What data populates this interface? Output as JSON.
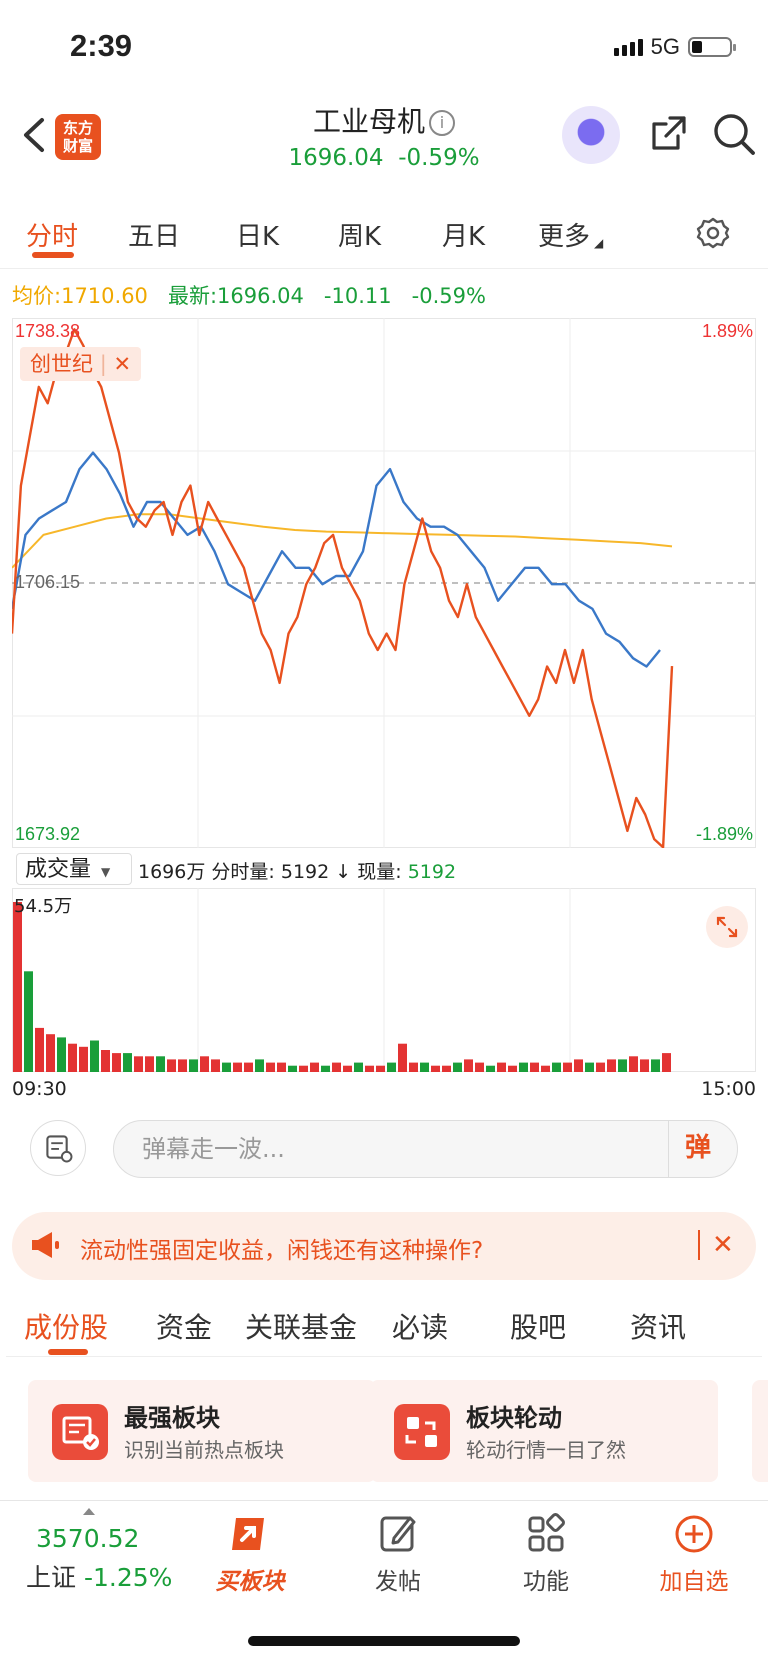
{
  "status": {
    "time": "2:39",
    "network": "5G"
  },
  "header": {
    "logo_line1": "东方",
    "logo_line2": "财富",
    "title": "工业母机",
    "info_glyph": "i",
    "price": "1696.04",
    "change_pct": "-0.59%"
  },
  "period_tabs": [
    "分时",
    "五日",
    "日K",
    "周K",
    "月K",
    "更多"
  ],
  "price_line": {
    "avg_label": "均价:",
    "avg_value": "1710.60",
    "latest_label": "最新:",
    "latest_value": "1696.04",
    "change": "-10.11",
    "change_pct": "-0.59%"
  },
  "chart_axis": {
    "top_price": "1738.38",
    "bottom_price": "1673.92",
    "top_pct": "1.89%",
    "bottom_pct": "-1.89%",
    "prev_close": "1706.15"
  },
  "compare_chip": {
    "label": "创世纪",
    "close_glyph": "✕"
  },
  "colors": {
    "accent": "#e8511f",
    "up": "#e33333",
    "down": "#1a9e3a",
    "avg": "#f7b72a",
    "compare": "#3a78c8"
  },
  "chart_data": {
    "type": "line",
    "ylim": [
      1673.92,
      1738.38
    ],
    "prev_close": 1706.15,
    "time_range": [
      "09:30",
      "15:00"
    ],
    "series": [
      {
        "name": "工业母机",
        "color": "#e8511f",
        "values": [
          1700,
          1718,
          1724,
          1730,
          1728,
          1732,
          1734,
          1737,
          1735,
          1732,
          1730,
          1726,
          1722,
          1716,
          1714,
          1713,
          1715,
          1716,
          1712,
          1716,
          1718,
          1712,
          1716,
          1714,
          1712,
          1710,
          1708,
          1704,
          1700,
          1698,
          1694,
          1700,
          1702,
          1706,
          1708,
          1711,
          1712,
          1708,
          1706,
          1704,
          1700,
          1698,
          1700,
          1698,
          1706,
          1710,
          1714,
          1710,
          1708,
          1704,
          1702,
          1706,
          1702,
          1700,
          1698,
          1696,
          1694,
          1692,
          1690,
          1692,
          1696,
          1694,
          1698,
          1694,
          1698,
          1692,
          1688,
          1684,
          1680,
          1676,
          1680,
          1678,
          1675,
          1674,
          1696.04
        ]
      },
      {
        "name": "创世纪",
        "color": "#3a78c8",
        "values": [
          1703,
          1712,
          1714,
          1715,
          1716,
          1720,
          1722,
          1720,
          1717,
          1713,
          1716,
          1716,
          1714,
          1712,
          1713,
          1710,
          1706,
          1705,
          1704,
          1707,
          1710,
          1708,
          1708,
          1706,
          1707,
          1707,
          1710,
          1718,
          1720,
          1716,
          1714,
          1713,
          1713,
          1712,
          1710,
          1708,
          1704,
          1706,
          1708,
          1708,
          1706,
          1706,
          1704,
          1703,
          1700,
          1699,
          1697,
          1696,
          1698
        ]
      },
      {
        "name": "均价",
        "color": "#f7b72a",
        "values": [
          1708,
          1712,
          1713,
          1714,
          1714.5,
          1714.5,
          1714,
          1713.5,
          1713,
          1712.6,
          1712.4,
          1712.3,
          1712.2,
          1712.1,
          1712,
          1711.9,
          1711.8,
          1711.6,
          1711.4,
          1711.2,
          1711,
          1710.6
        ]
      }
    ],
    "volume": {
      "max_label": "54.5万",
      "values": [
        54,
        32,
        14,
        12,
        11,
        9,
        8,
        10,
        7,
        6,
        6,
        5,
        5,
        5,
        4,
        4,
        4,
        5,
        4,
        3,
        3,
        3,
        4,
        3,
        3,
        2,
        2,
        3,
        2,
        3,
        2,
        3,
        2,
        2,
        3,
        9,
        3,
        3,
        2,
        2,
        3,
        4,
        3,
        2,
        3,
        2,
        3,
        3,
        2,
        3,
        3,
        4,
        3,
        3,
        4,
        4,
        5,
        4,
        4,
        6
      ]
    }
  },
  "volume_bar": {
    "selector_label": "成交量",
    "total": "1696万",
    "period_label": "分时量:",
    "period_value": "5192",
    "arrow": "↓",
    "current_label": "现量:",
    "current_value": "5192",
    "max_label": "54.5万",
    "time_start": "09:30",
    "time_end": "15:00"
  },
  "comment": {
    "placeholder": "弹幕走一波...",
    "danmu_label": "弹"
  },
  "banner": {
    "text": "流动性强固定收益，闲钱还有这种操作?",
    "close_glyph": "✕"
  },
  "content_tabs": [
    "成份股",
    "资金",
    "关联基金",
    "必读",
    "股吧",
    "资讯"
  ],
  "cards": [
    {
      "title": "最强板块",
      "subtitle": "识别当前热点板块"
    },
    {
      "title": "板块轮动",
      "subtitle": "轮动行情一目了然"
    }
  ],
  "bottom_nav": {
    "index_value": "3570.52",
    "index_name": "上证",
    "index_change": "-1.25%",
    "items": [
      "买板块",
      "发帖",
      "功能",
      "加自选"
    ]
  }
}
